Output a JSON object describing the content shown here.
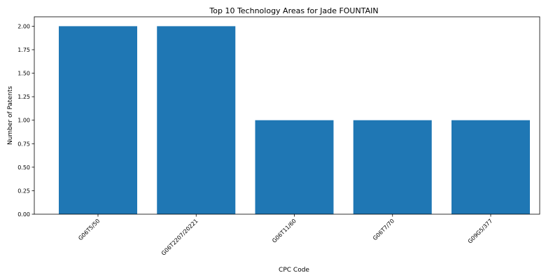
{
  "chart_data": {
    "type": "bar",
    "title": "Top 10 Technology Areas for Jade FOUNTAIN",
    "xlabel": "CPC Code",
    "ylabel": "Number of Patents",
    "categories": [
      "G06T5/50",
      "G06T2207/20221",
      "G06T11/60",
      "G06T7/70",
      "G09G5/377"
    ],
    "values": [
      2,
      2,
      1,
      1,
      1
    ],
    "ylim": [
      0,
      2.1
    ],
    "yticks": [
      "0.00",
      "0.25",
      "0.50",
      "0.75",
      "1.00",
      "1.25",
      "1.50",
      "1.75",
      "2.00"
    ],
    "bar_color": "#1f77b4",
    "grid": false,
    "xtick_rotation": "45 degrees"
  }
}
